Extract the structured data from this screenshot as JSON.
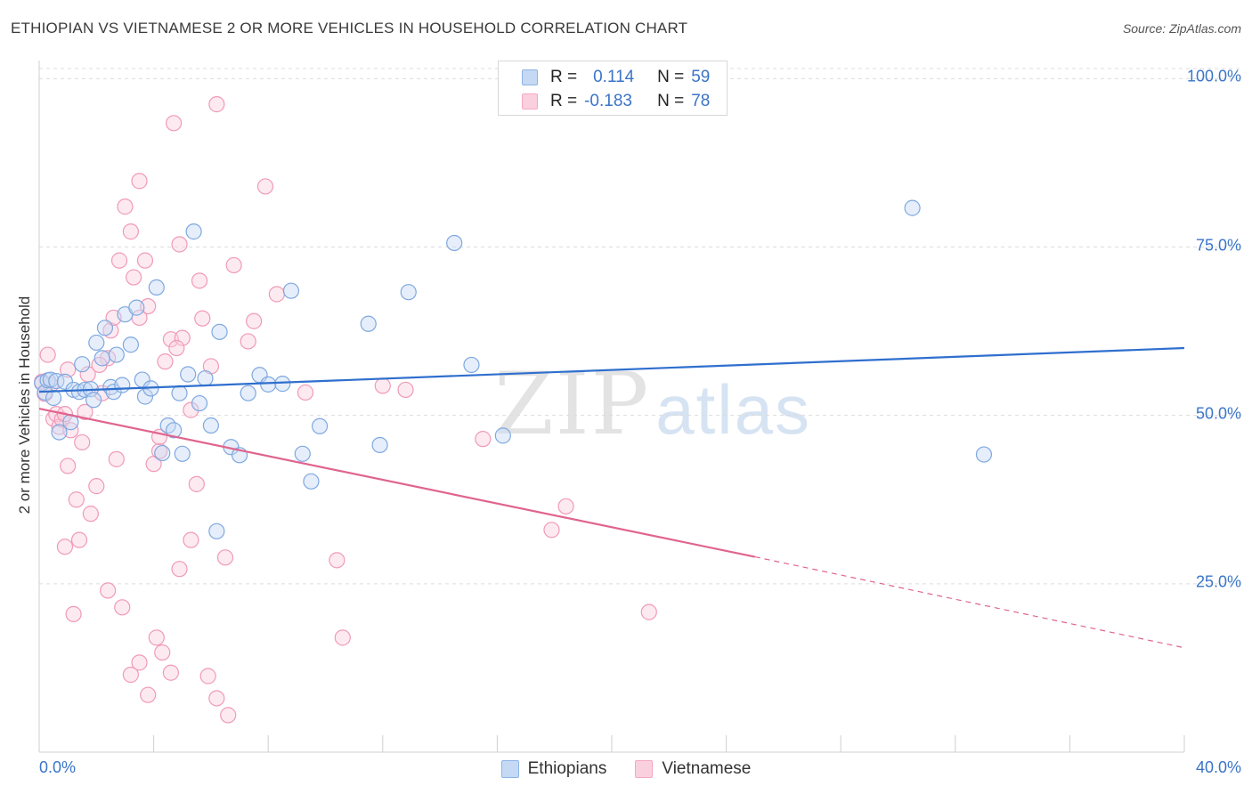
{
  "header": {
    "title": "ETHIOPIAN VS VIETNAMESE 2 OR MORE VEHICLES IN HOUSEHOLD CORRELATION CHART",
    "source": "Source: ZipAtlas.com"
  },
  "legend_top": {
    "rows": [
      {
        "r_label": "R =",
        "r_value": "0.114",
        "n_label": "N =",
        "n_value": "59"
      },
      {
        "r_label": "R =",
        "r_value": "-0.183",
        "n_label": "N =",
        "n_value": "78"
      }
    ]
  },
  "watermark": {
    "part1": "ZIP",
    "part2": "atlas"
  },
  "chart_data": {
    "type": "scatter",
    "title": "ETHIOPIAN VS VIETNAMESE 2 OR MORE VEHICLES IN HOUSEHOLD CORRELATION CHART",
    "xlabel": "",
    "ylabel": "2 or more Vehicles in Household",
    "xlim": [
      0,
      40
    ],
    "ylim": [
      0,
      100
    ],
    "x_tick_labels": [
      "0.0%",
      "40.0%"
    ],
    "y_tick_labels": [
      "100.0%",
      "75.0%",
      "50.0%",
      "25.0%"
    ],
    "y_tick_values": [
      100,
      75,
      50,
      25
    ],
    "grid": "horizontal dashed",
    "legend_position": "top-center",
    "colors": {
      "ethiopians": "#8db4e8",
      "ethiopians_line": "#2f6fce",
      "vietnamese": "#f5a8c2",
      "vietnamese_line": "#e0648e",
      "tick_text": "#3a74c8"
    },
    "series": [
      {
        "name": "Ethiopians",
        "r": 0.114,
        "n": 59,
        "trend": {
          "x0": 0,
          "y0": 53.5,
          "x1": 40,
          "y1": 60.0
        },
        "points": [
          [
            0.1,
            54.8
          ],
          [
            0.2,
            53.4
          ],
          [
            0.3,
            55.2
          ],
          [
            0.4,
            55.3
          ],
          [
            0.5,
            52.6
          ],
          [
            0.6,
            55.1
          ],
          [
            0.7,
            47.5
          ],
          [
            0.9,
            55.0
          ],
          [
            1.1,
            49.0
          ],
          [
            1.2,
            53.8
          ],
          [
            1.4,
            53.5
          ],
          [
            1.5,
            57.6
          ],
          [
            1.6,
            53.8
          ],
          [
            1.8,
            53.9
          ],
          [
            1.9,
            52.3
          ],
          [
            2.0,
            60.8
          ],
          [
            2.2,
            58.5
          ],
          [
            2.3,
            63.0
          ],
          [
            2.5,
            54.2
          ],
          [
            2.6,
            53.5
          ],
          [
            2.7,
            59.0
          ],
          [
            2.9,
            54.5
          ],
          [
            3.0,
            65.0
          ],
          [
            3.2,
            60.5
          ],
          [
            3.4,
            66.0
          ],
          [
            3.6,
            55.3
          ],
          [
            3.7,
            52.8
          ],
          [
            3.9,
            54.0
          ],
          [
            4.1,
            69.0
          ],
          [
            4.3,
            44.4
          ],
          [
            4.5,
            48.5
          ],
          [
            4.7,
            47.8
          ],
          [
            4.9,
            53.3
          ],
          [
            5.0,
            44.3
          ],
          [
            5.2,
            56.1
          ],
          [
            5.4,
            77.3
          ],
          [
            5.6,
            51.8
          ],
          [
            5.8,
            55.5
          ],
          [
            6.0,
            48.5
          ],
          [
            6.3,
            62.4
          ],
          [
            6.7,
            45.3
          ],
          [
            7.0,
            44.1
          ],
          [
            7.3,
            53.3
          ],
          [
            7.7,
            56.0
          ],
          [
            8.0,
            54.6
          ],
          [
            8.5,
            54.7
          ],
          [
            8.8,
            68.5
          ],
          [
            9.2,
            44.3
          ],
          [
            9.5,
            40.2
          ],
          [
            9.8,
            48.4
          ],
          [
            11.5,
            63.6
          ],
          [
            11.9,
            45.6
          ],
          [
            12.9,
            68.3
          ],
          [
            14.5,
            75.6
          ],
          [
            15.1,
            57.5
          ],
          [
            16.2,
            47.0
          ],
          [
            30.5,
            80.8
          ],
          [
            33.0,
            44.2
          ],
          [
            6.2,
            32.8
          ]
        ]
      },
      {
        "name": "Vietnamese",
        "r": -0.183,
        "n": 78,
        "trend": {
          "x0": 0,
          "y0": 51.0,
          "x1": 25,
          "y1": 29.0,
          "dash_to_x": 40,
          "dash_to_y": 15.5
        },
        "points": [
          [
            0.1,
            55.0
          ],
          [
            0.2,
            53.2
          ],
          [
            0.3,
            59.0
          ],
          [
            0.4,
            54.5
          ],
          [
            0.5,
            49.5
          ],
          [
            0.6,
            50.2
          ],
          [
            0.7,
            48.3
          ],
          [
            0.8,
            49.4
          ],
          [
            1.0,
            56.8
          ],
          [
            1.1,
            47.8
          ],
          [
            1.3,
            37.5
          ],
          [
            1.4,
            31.5
          ],
          [
            1.5,
            46.0
          ],
          [
            1.6,
            50.5
          ],
          [
            1.8,
            35.4
          ],
          [
            2.0,
            39.5
          ],
          [
            2.2,
            53.3
          ],
          [
            2.4,
            58.5
          ],
          [
            2.5,
            62.6
          ],
          [
            2.6,
            64.5
          ],
          [
            2.8,
            73.0
          ],
          [
            3.0,
            81.0
          ],
          [
            3.2,
            77.3
          ],
          [
            3.3,
            70.5
          ],
          [
            3.5,
            84.8
          ],
          [
            3.7,
            73.0
          ],
          [
            3.8,
            66.2
          ],
          [
            4.0,
            42.8
          ],
          [
            4.2,
            44.7
          ],
          [
            4.4,
            58.0
          ],
          [
            4.6,
            61.3
          ],
          [
            4.7,
            93.4
          ],
          [
            4.9,
            75.4
          ],
          [
            5.0,
            61.5
          ],
          [
            5.3,
            50.8
          ],
          [
            5.5,
            39.8
          ],
          [
            5.7,
            64.4
          ],
          [
            6.0,
            57.3
          ],
          [
            6.2,
            96.2
          ],
          [
            6.5,
            28.9
          ],
          [
            7.5,
            64.0
          ],
          [
            7.9,
            84.0
          ],
          [
            8.3,
            68.0
          ],
          [
            9.3,
            53.4
          ],
          [
            10.4,
            28.5
          ],
          [
            12.0,
            54.4
          ],
          [
            12.8,
            53.8
          ],
          [
            15.5,
            46.5
          ],
          [
            17.9,
            33.0
          ],
          [
            18.4,
            36.5
          ],
          [
            21.3,
            20.8
          ],
          [
            0.9,
            30.5
          ],
          [
            1.2,
            20.5
          ],
          [
            2.4,
            24.0
          ],
          [
            2.9,
            21.5
          ],
          [
            3.2,
            11.5
          ],
          [
            3.5,
            13.3
          ],
          [
            3.8,
            8.5
          ],
          [
            4.1,
            17.0
          ],
          [
            4.3,
            14.8
          ],
          [
            4.6,
            11.8
          ],
          [
            4.9,
            27.2
          ],
          [
            5.3,
            31.5
          ],
          [
            5.9,
            11.3
          ],
          [
            6.2,
            8.0
          ],
          [
            6.6,
            5.5
          ],
          [
            10.6,
            17.0
          ],
          [
            1.0,
            42.5
          ],
          [
            2.7,
            43.5
          ],
          [
            4.2,
            46.8
          ],
          [
            4.8,
            60.0
          ],
          [
            2.1,
            57.5
          ],
          [
            0.9,
            50.2
          ],
          [
            1.7,
            56.1
          ],
          [
            3.5,
            64.5
          ],
          [
            6.8,
            72.3
          ],
          [
            7.3,
            61.0
          ],
          [
            5.6,
            70.0
          ]
        ]
      }
    ]
  },
  "legend_bottom": {
    "items": [
      {
        "label": "Ethiopians"
      },
      {
        "label": "Vietnamese"
      }
    ]
  }
}
